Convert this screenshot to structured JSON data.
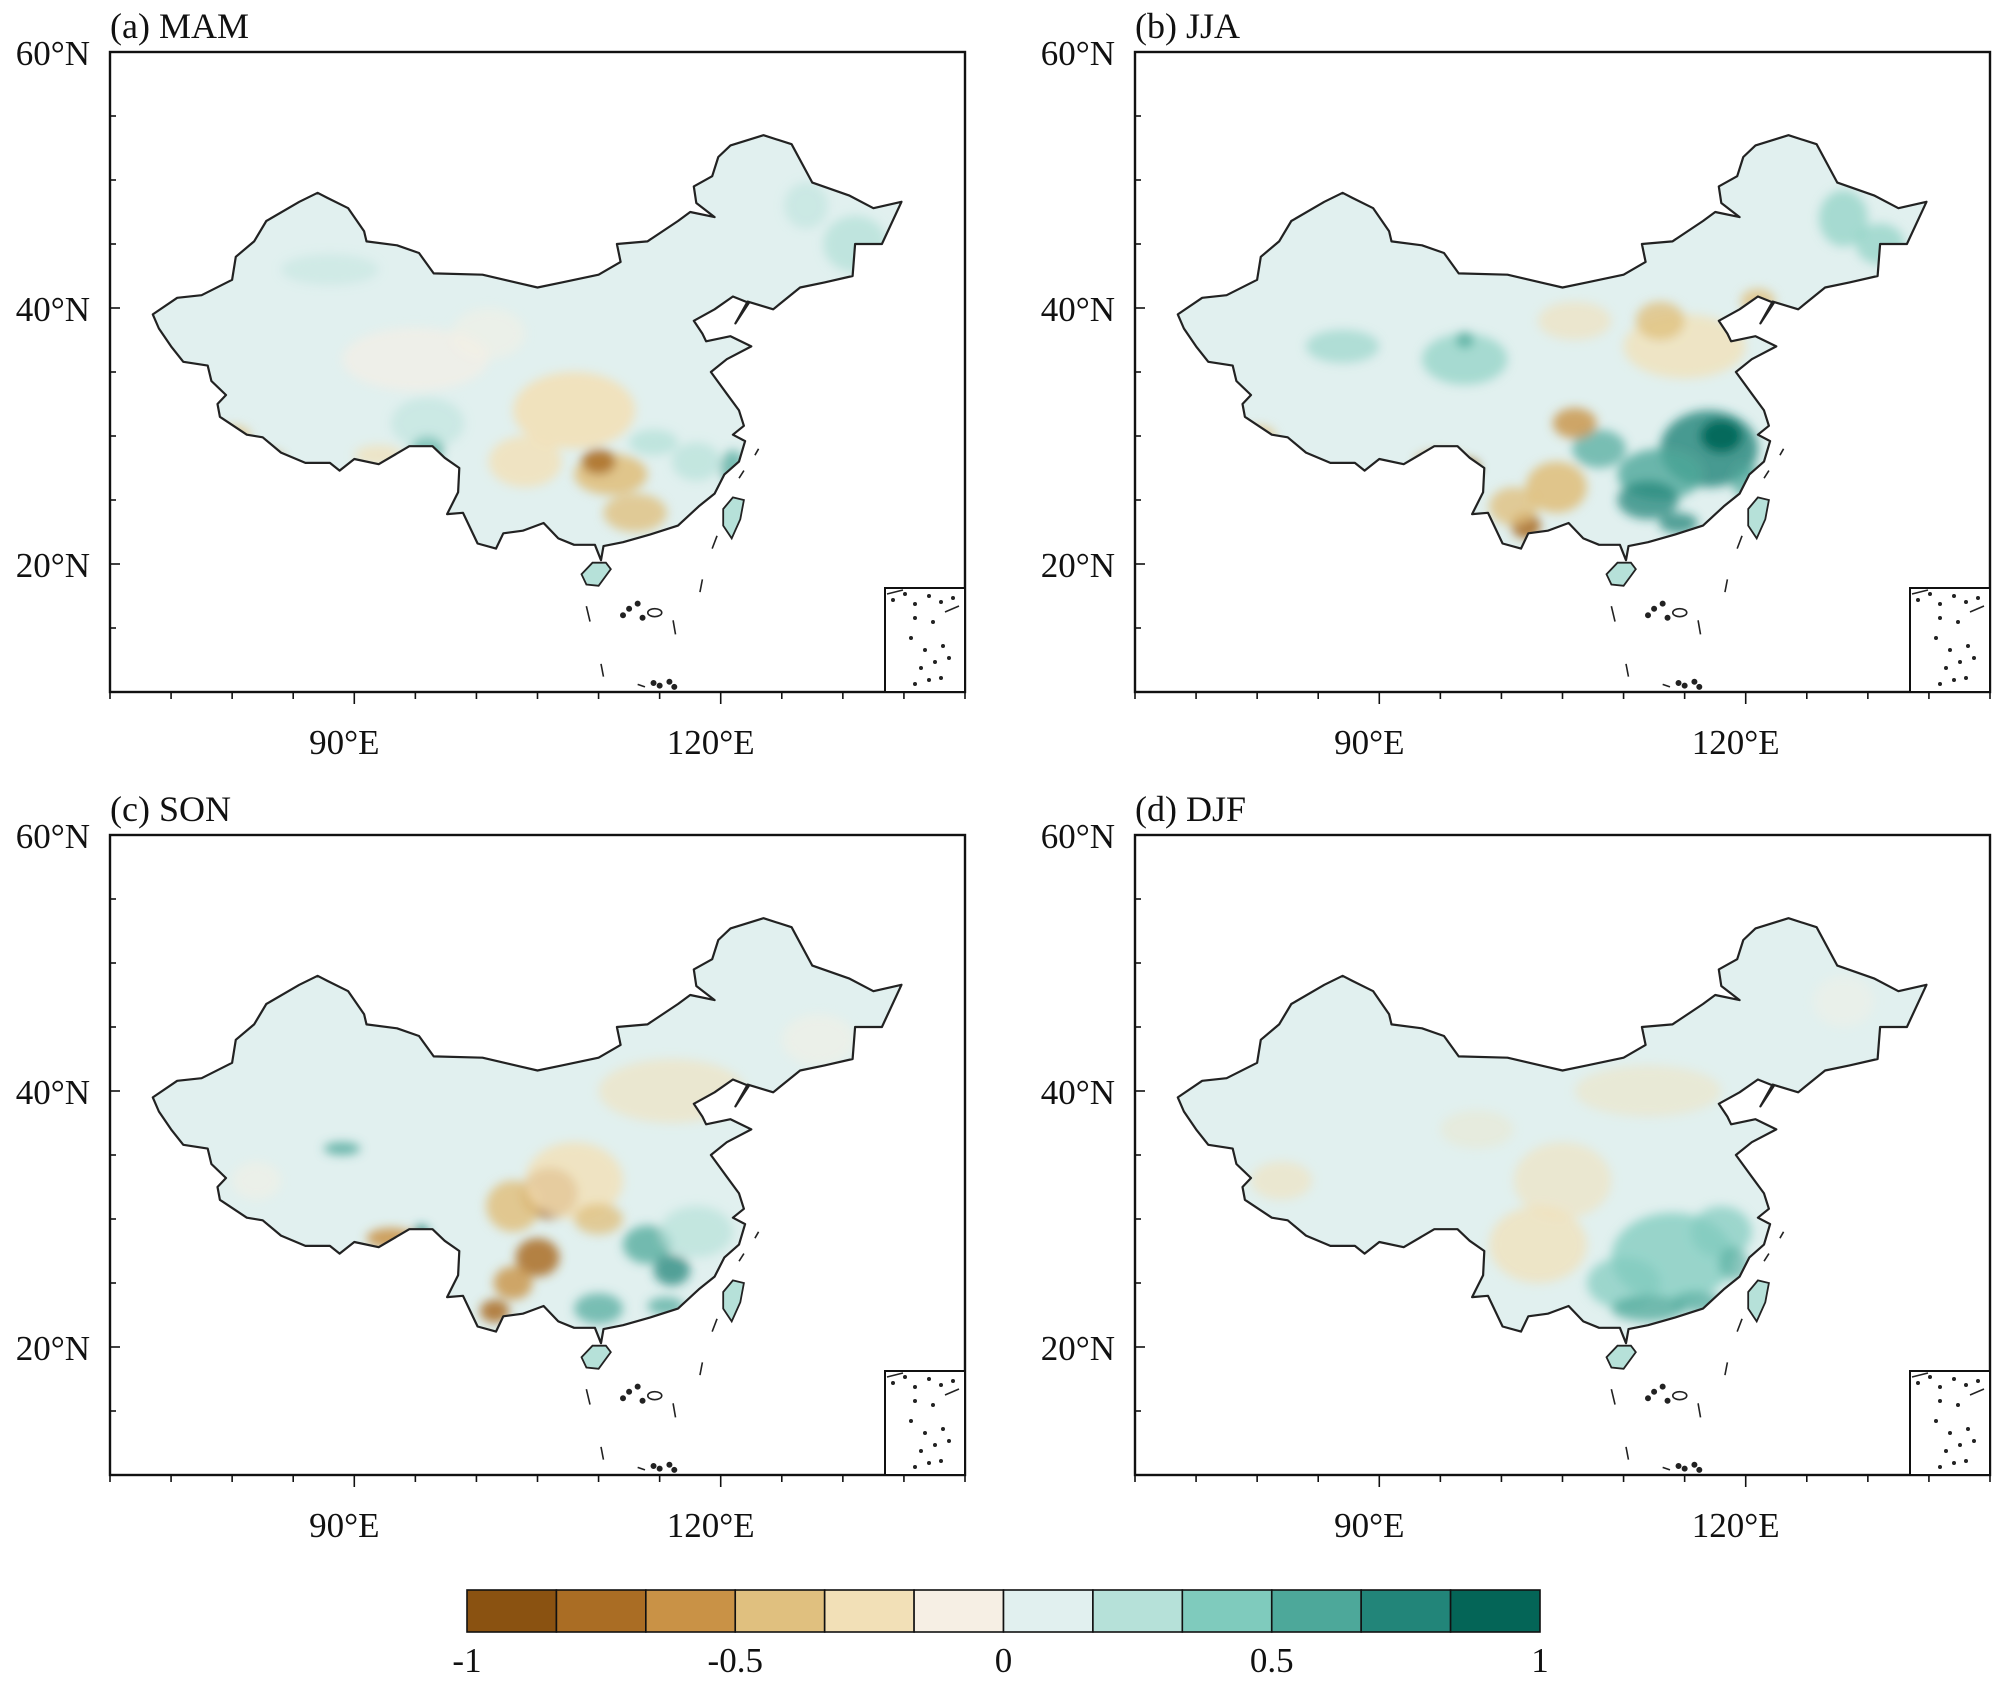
{
  "panels": [
    {
      "title": "(a) MAM",
      "lat_labels": [
        "60°N",
        "40°N",
        "20°N"
      ],
      "lon_labels": [
        "90°E",
        "120°E"
      ]
    },
    {
      "title": "(b) JJA",
      "lat_labels": [
        "60°N",
        "40°N",
        "20°N"
      ],
      "lon_labels": [
        "90°E",
        "120°E"
      ]
    },
    {
      "title": "(c) SON",
      "lat_labels": [
        "60°N",
        "40°N",
        "20°N"
      ],
      "lon_labels": [
        "90°E",
        "120°E"
      ]
    },
    {
      "title": "(d) DJF",
      "lat_labels": [
        "60°N",
        "40°N",
        "20°N"
      ],
      "lon_labels": [
        "90°E",
        "120°E"
      ]
    }
  ],
  "map_extent": {
    "lon": [
      70,
      140
    ],
    "lat": [
      10,
      60
    ]
  },
  "colorbar": {
    "range": [
      -1,
      1
    ],
    "tick_labels": [
      "-1",
      "-0.5",
      "0",
      "0.5",
      "1"
    ],
    "colors": [
      "#8a5211",
      "#aa6d24",
      "#c99246",
      "#e0c07f",
      "#f2e0b7",
      "#f6efe4",
      "#e1f0ef",
      "#b6e1d9",
      "#7fcbbd",
      "#4da89a",
      "#228579",
      "#046557"
    ]
  },
  "palette": {
    "land_base": "#e1f0ef",
    "border": "#222222"
  }
}
